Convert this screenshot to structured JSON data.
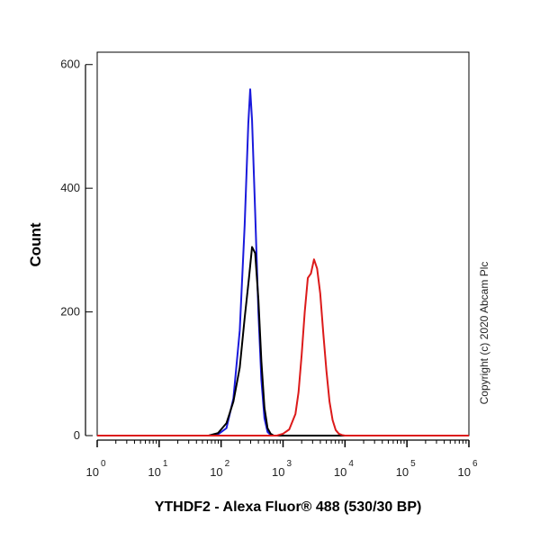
{
  "chart_data": {
    "type": "line",
    "title": "",
    "xlabel": "YTHDF2 - Alexa Fluor® 488 (530/30 BP)",
    "ylabel": "Count",
    "x_scale": "log",
    "xlim": [
      1,
      1000000
    ],
    "ylim": [
      0,
      620
    ],
    "y_ticks": [
      0,
      200,
      400,
      600
    ],
    "x_ticks": [
      {
        "base": "10",
        "exp": "0",
        "value": 1
      },
      {
        "base": "10",
        "exp": "1",
        "value": 10
      },
      {
        "base": "10",
        "exp": "2",
        "value": 100
      },
      {
        "base": "10",
        "exp": "3",
        "value": 1000
      },
      {
        "base": "10",
        "exp": "4",
        "value": 10000
      },
      {
        "base": "10",
        "exp": "5",
        "value": 100000
      },
      {
        "base": "10",
        "exp": "6",
        "value": 1000000
      }
    ],
    "grid": false,
    "legend": "none",
    "series": [
      {
        "color": "#1a1adc",
        "x": [
          1,
          63,
          89,
          122,
          158,
          200,
          240,
          275,
          295,
          316,
          355,
          400,
          447,
          501,
          562,
          631,
          708,
          1000000
        ],
        "y": [
          0,
          0,
          2,
          12,
          60,
          170,
          340,
          505,
          560,
          510,
          360,
          200,
          90,
          28,
          6,
          1,
          0,
          0
        ]
      },
      {
        "color": "#000000",
        "x": [
          1,
          63,
          89,
          122,
          158,
          200,
          240,
          282,
          316,
          355,
          400,
          447,
          501,
          562,
          631,
          708,
          1000000
        ],
        "y": [
          0,
          0,
          4,
          20,
          55,
          110,
          190,
          255,
          305,
          295,
          220,
          120,
          45,
          12,
          3,
          0,
          0
        ]
      },
      {
        "color": "#dc1a1a",
        "x": [
          1,
          794,
          1000,
          1259,
          1585,
          1778,
          1995,
          2239,
          2512,
          2818,
          3162,
          3548,
          3981,
          4467,
          5012,
          5623,
          6310,
          7079,
          7943,
          8913,
          10000,
          1000000
        ],
        "y": [
          0,
          0,
          3,
          10,
          35,
          70,
          130,
          200,
          255,
          262,
          285,
          270,
          230,
          165,
          105,
          55,
          25,
          9,
          3,
          1,
          0,
          0
        ]
      }
    ]
  },
  "copyright": "Copyright (c) 2020 Abcam Plc"
}
